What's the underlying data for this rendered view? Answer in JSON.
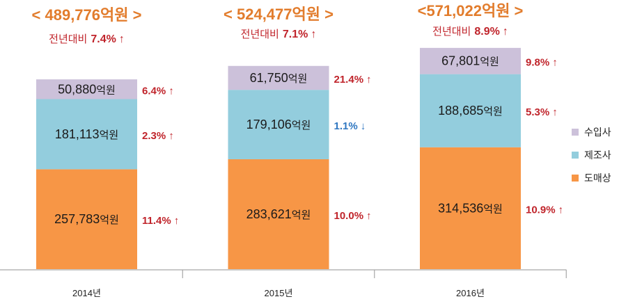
{
  "chart_data": {
    "type": "bar",
    "stacked": true,
    "categories": [
      "2014년",
      "2015년",
      "2016년"
    ],
    "unit": "억원",
    "ylim": [
      0,
      700000
    ],
    "grid": false,
    "legend": {
      "position": "right"
    },
    "series": [
      {
        "name": "도매상",
        "color": "#F79646",
        "values": [
          257783,
          283621,
          314536
        ],
        "changes": [
          {
            "text": "11.4%",
            "icon": "up-arrow-icon",
            "color": "#C0242B"
          },
          {
            "text": "10.0%",
            "icon": "up-arrow-icon",
            "color": "#C0242B"
          },
          {
            "text": "10.9%",
            "icon": "up-arrow-icon",
            "color": "#C0242B"
          }
        ]
      },
      {
        "name": "제조사",
        "color": "#93CDDD",
        "values": [
          181113,
          179106,
          188685
        ],
        "changes": [
          {
            "text": "2.3%",
            "icon": "up-arrow-icon",
            "color": "#C0242B"
          },
          {
            "text": "1.1%",
            "icon": "down-arrow-icon",
            "color": "#2F77C1"
          },
          {
            "text": "5.3%",
            "icon": "up-arrow-icon",
            "color": "#C0242B"
          }
        ]
      },
      {
        "name": "수입사",
        "color": "#CCC1DA",
        "values": [
          50880,
          61750,
          67801
        ],
        "changes": [
          {
            "text": "6.4%",
            "icon": "up-arrow-icon",
            "color": "#C0242B"
          },
          {
            "text": "21.4%",
            "icon": "up-arrow-icon",
            "color": "#C0242B"
          },
          {
            "text": "9.8%",
            "icon": "up-arrow-icon",
            "color": "#C0242B"
          }
        ]
      }
    ],
    "totals": {
      "color": "#E27C2C",
      "labels": [
        "< 489,776억원 >",
        "< 524,477억원 >",
        "<571,022억원 >"
      ],
      "yoy_prefix": "전년대비",
      "yoy": [
        {
          "text": "7.4%",
          "icon": "up-arrow-icon",
          "color": "#C0242B"
        },
        {
          "text": "7.1%",
          "icon": "up-arrow-icon",
          "color": "#C0242B"
        },
        {
          "text": "8.9%",
          "icon": "up-arrow-icon",
          "color": "#C0242B"
        }
      ]
    },
    "icons": {
      "up-arrow-icon": "↑",
      "down-arrow-icon": "↓"
    }
  }
}
